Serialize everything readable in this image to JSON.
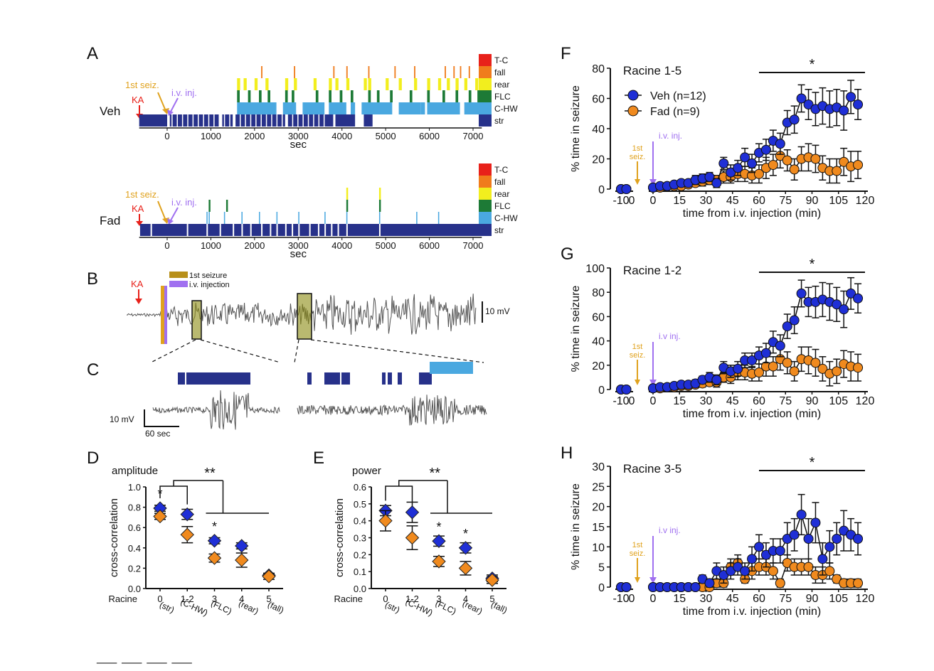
{
  "panel_letters": {
    "A": "A",
    "B": "B",
    "C": "C",
    "D": "D",
    "E": "E",
    "F": "F",
    "G": "G",
    "H": "H"
  },
  "colors": {
    "veh": "#1f2fd6",
    "fad": "#f08a1e",
    "kA": "#e8211a",
    "firstSeiz": "#e0a21e",
    "ivInj": "#a070f0",
    "state_TC": "#e8211a",
    "state_fall": "#f07c1c",
    "state_rear": "#f2ee1e",
    "state_FLC": "#1d7a36",
    "state_CHW": "#4aa8e0",
    "state_str": "#27318a",
    "trace": "#555555",
    "box": "#8a8a10"
  },
  "panelA": {
    "legend": [
      "T-C",
      "fall",
      "rear",
      "FLC",
      "C-HW",
      "str"
    ],
    "rows": [
      {
        "label": "Veh",
        "annot_kA": "KA",
        "annot_first": "1st seiz.",
        "annot_iv": "i.v. inj."
      },
      {
        "label": "Fad",
        "annot_kA": "KA",
        "annot_first": "1st seiz.",
        "annot_iv": "i.v. inj."
      }
    ],
    "xticks": [
      "0",
      "1000",
      "2000",
      "3000",
      "4000",
      "5000",
      "6000",
      "7000"
    ],
    "xlabel": "sec"
  },
  "panelB": {
    "kA": "KA",
    "legend_first": "1st seizure",
    "legend_iv": "i.v. injection",
    "scale": "10 mV"
  },
  "panelC": {
    "scale_v": "10 mV",
    "scale_t": "60 sec"
  },
  "panelsDE": {
    "xlabel_prefix": "Racine",
    "xticks": [
      "0",
      "1-2",
      "3",
      "4",
      "5"
    ],
    "xsub": [
      "(str)",
      "(C-HW)",
      "(FLC)",
      "(rear)",
      "(fall)"
    ],
    "sig_double": "**",
    "sig_single": "*"
  },
  "panelsFGH": {
    "xlabel": "time from i.v. injection (min)",
    "ylabel": "% time in seizure",
    "xticks": [
      "-10",
      "0",
      "0",
      "15",
      "30",
      "45",
      "60",
      "75",
      "90",
      "105",
      "120"
    ],
    "first_seiz": [
      "1st",
      "seiz."
    ],
    "legend": [
      "Veh (n=12)",
      "Fad (n=9)"
    ],
    "sig": "*"
  },
  "chart_data": [
    {
      "id": "D",
      "type": "scatter",
      "title": "amplitude",
      "ylabel": "cross-correlation",
      "xlabel": "Racine",
      "categories": [
        "0",
        "1-2",
        "3",
        "4",
        "5"
      ],
      "ylim": [
        0.0,
        1.0
      ],
      "yticks": [
        "0.0",
        "0.2",
        "0.4",
        "0.6",
        "0.8",
        "1.0"
      ],
      "series": [
        {
          "name": "Veh",
          "values": [
            0.79,
            0.73,
            0.47,
            0.42,
            0.13
          ],
          "err": [
            0.03,
            0.05,
            0.03,
            0.03,
            0.02
          ]
        },
        {
          "name": "Fad",
          "values": [
            0.71,
            0.53,
            0.3,
            0.28,
            0.12
          ],
          "err": [
            0.03,
            0.08,
            0.04,
            0.07,
            0.03
          ]
        }
      ]
    },
    {
      "id": "E",
      "type": "scatter",
      "title": "power",
      "ylabel": "cross-correlation",
      "xlabel": "Racine",
      "categories": [
        "0",
        "1-2",
        "3",
        "4",
        "5"
      ],
      "ylim": [
        0.0,
        0.6
      ],
      "yticks": [
        "0.0",
        "0.1",
        "0.2",
        "0.3",
        "0.4",
        "0.5",
        "0.6"
      ],
      "series": [
        {
          "name": "Veh",
          "values": [
            0.46,
            0.45,
            0.28,
            0.24,
            0.06
          ],
          "err": [
            0.03,
            0.06,
            0.03,
            0.03,
            0.02
          ]
        },
        {
          "name": "Fad",
          "values": [
            0.4,
            0.3,
            0.16,
            0.12,
            0.05
          ],
          "err": [
            0.06,
            0.07,
            0.03,
            0.04,
            0.02
          ]
        }
      ]
    },
    {
      "id": "F",
      "type": "line",
      "title": "Racine 1-5",
      "ylim": [
        0,
        80
      ],
      "yticks": [
        "0",
        "20",
        "40",
        "60",
        "80"
      ],
      "x_pre": [
        -10,
        -5
      ],
      "x": [
        0,
        4,
        8,
        12,
        16,
        20,
        24,
        28,
        32,
        36,
        40,
        44,
        48,
        52,
        56,
        60,
        64,
        68,
        72,
        76,
        80,
        84,
        88,
        92,
        96,
        100,
        104,
        108,
        112,
        116
      ],
      "series": [
        {
          "name": "Veh (n=12)",
          "pre": [
            0,
            0
          ],
          "values": [
            1,
            2,
            2,
            3,
            4,
            4,
            6,
            7,
            8,
            4,
            17,
            11,
            14,
            21,
            17,
            24,
            26,
            32,
            30,
            44,
            46,
            60,
            56,
            53,
            55,
            53,
            54,
            52,
            61,
            56
          ],
          "err": [
            1,
            1,
            1,
            2,
            2,
            2,
            3,
            3,
            3,
            3,
            4,
            5,
            5,
            6,
            6,
            6,
            7,
            7,
            7,
            8,
            9,
            9,
            10,
            11,
            12,
            12,
            12,
            13,
            11,
            10
          ]
        },
        {
          "name": "Fad (n=9)",
          "pre": [
            0,
            0
          ],
          "values": [
            1,
            1,
            2,
            2,
            2,
            3,
            4,
            5,
            6,
            6,
            8,
            8,
            10,
            10,
            9,
            10,
            14,
            16,
            22,
            19,
            13,
            20,
            21,
            20,
            14,
            12,
            12,
            18,
            15,
            16
          ],
          "err": [
            1,
            1,
            1,
            1,
            1,
            2,
            2,
            3,
            3,
            3,
            4,
            4,
            5,
            5,
            5,
            6,
            7,
            7,
            8,
            7,
            7,
            8,
            9,
            9,
            8,
            8,
            8,
            9,
            10,
            9
          ]
        }
      ],
      "sig_span": [
        60,
        120
      ]
    },
    {
      "id": "G",
      "type": "line",
      "title": "Racine 1-2",
      "ylim": [
        0,
        100
      ],
      "yticks": [
        "0",
        "20",
        "40",
        "60",
        "80",
        "100"
      ],
      "x_pre": [
        -10,
        -5
      ],
      "x": [
        0,
        4,
        8,
        12,
        16,
        20,
        24,
        28,
        32,
        36,
        40,
        44,
        48,
        52,
        56,
        60,
        64,
        68,
        72,
        76,
        80,
        84,
        88,
        92,
        96,
        100,
        104,
        108,
        112,
        116
      ],
      "series": [
        {
          "name": "Veh (n=12)",
          "pre": [
            0,
            0
          ],
          "values": [
            1,
            2,
            2,
            3,
            4,
            4,
            5,
            8,
            10,
            8,
            18,
            15,
            17,
            24,
            24,
            28,
            30,
            39,
            36,
            52,
            57,
            79,
            72,
            72,
            74,
            72,
            70,
            66,
            79,
            75
          ],
          "err": [
            1,
            1,
            1,
            2,
            2,
            2,
            3,
            3,
            4,
            4,
            5,
            5,
            6,
            6,
            6,
            7,
            8,
            9,
            9,
            10,
            11,
            11,
            12,
            13,
            14,
            15,
            14,
            15,
            13,
            12
          ]
        },
        {
          "name": "Fad (n=9)",
          "pre": [
            0,
            0
          ],
          "values": [
            1,
            1,
            2,
            2,
            3,
            3,
            4,
            5,
            6,
            6,
            10,
            10,
            14,
            14,
            13,
            14,
            19,
            19,
            25,
            22,
            15,
            25,
            24,
            22,
            17,
            13,
            15,
            21,
            19,
            18
          ],
          "err": [
            1,
            1,
            1,
            1,
            2,
            2,
            2,
            3,
            3,
            4,
            4,
            5,
            6,
            6,
            6,
            7,
            8,
            8,
            9,
            9,
            8,
            10,
            11,
            11,
            10,
            10,
            10,
            11,
            12,
            11
          ]
        }
      ],
      "sig_span": [
        60,
        120
      ]
    },
    {
      "id": "H",
      "type": "line",
      "title": "Racine 3-5",
      "ylim": [
        0,
        30
      ],
      "yticks": [
        "0",
        "5",
        "10",
        "15",
        "20",
        "25",
        "30"
      ],
      "x_pre": [
        -10,
        -5
      ],
      "x": [
        0,
        4,
        8,
        12,
        16,
        20,
        24,
        28,
        32,
        36,
        40,
        44,
        48,
        52,
        56,
        60,
        64,
        68,
        72,
        76,
        80,
        84,
        88,
        92,
        96,
        100,
        104,
        108,
        112,
        116
      ],
      "series": [
        {
          "name": "Veh (n=12)",
          "pre": [
            0,
            0
          ],
          "values": [
            0,
            0,
            0,
            0,
            0,
            0,
            0,
            2,
            1,
            4,
            3,
            4,
            5,
            4,
            7,
            10,
            8,
            9,
            9,
            12,
            13,
            18,
            12,
            16,
            7,
            10,
            12,
            14,
            13,
            12
          ],
          "err": [
            0,
            0,
            0,
            0,
            0,
            0,
            0,
            1,
            1,
            2,
            2,
            2,
            2,
            2,
            3,
            3,
            3,
            3,
            3,
            4,
            4,
            5,
            5,
            5,
            4,
            4,
            4,
            5,
            4,
            4
          ]
        },
        {
          "name": "Fad (n=9)",
          "pre": [
            0,
            0
          ],
          "values": [
            0,
            0,
            0,
            0,
            0,
            0,
            0,
            0,
            0,
            1,
            1,
            5,
            6,
            2,
            4,
            5,
            5,
            4,
            1,
            6,
            5,
            5,
            5,
            3,
            3,
            4,
            2,
            1,
            1,
            1
          ],
          "err": [
            0,
            0,
            0,
            0,
            0,
            0,
            0,
            0,
            0,
            1,
            1,
            2,
            2,
            1,
            2,
            2,
            2,
            2,
            1,
            2,
            2,
            2,
            2,
            2,
            2,
            2,
            1,
            1,
            1,
            1
          ]
        }
      ],
      "sig_span": [
        60,
        120
      ]
    }
  ]
}
